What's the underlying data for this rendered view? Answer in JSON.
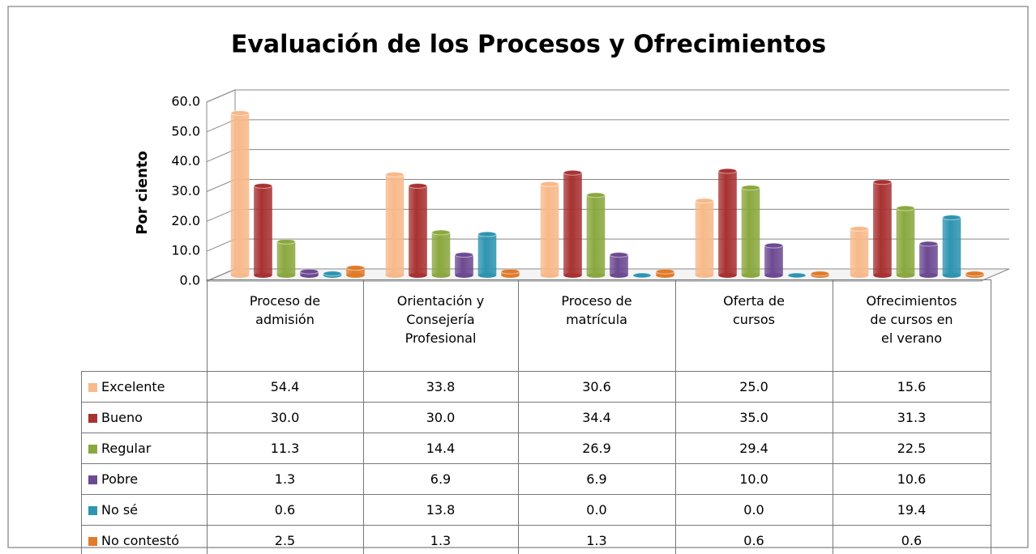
{
  "chart_data": {
    "type": "bar3d",
    "title": "Evaluación de los Procesos y Ofrecimientos",
    "y_label": "Por ciento",
    "categories": [
      "Proceso de\nadmisión",
      "Orientación y\nConsejería\nProfesional",
      "Proceso de\nmatrícula",
      "Oferta de\ncursos",
      "Ofrecimientos\nde cursos en\nel verano"
    ],
    "ylim": [
      0,
      60
    ],
    "yticks": [
      {
        "value": 0,
        "label": "0.0"
      },
      {
        "value": 10,
        "label": "10.0"
      },
      {
        "value": 20,
        "label": "20.0"
      },
      {
        "value": 30,
        "label": "30.0"
      },
      {
        "value": 40,
        "label": "40.0"
      },
      {
        "value": 50,
        "label": "50.0"
      },
      {
        "value": 60,
        "label": "60.0"
      }
    ],
    "grid": true,
    "series": [
      {
        "name": "Excelente",
        "color": "#f7b98a",
        "values": [
          54.4,
          33.8,
          30.6,
          25,
          15.6
        ],
        "value_labels": [
          "54.4",
          "33.8",
          "30.6",
          "25.0",
          "15.6"
        ]
      },
      {
        "name": "Bueno",
        "color": "#a83232",
        "values": [
          30,
          30,
          34.4,
          35,
          31.3
        ],
        "value_labels": [
          "30.0",
          "30.0",
          "34.4",
          "35.0",
          "31.3"
        ]
      },
      {
        "name": "Regular",
        "color": "#8aa83f",
        "values": [
          11.3,
          14.4,
          26.9,
          29.4,
          22.5
        ],
        "value_labels": [
          "11.3",
          "14.4",
          "26.9",
          "29.4",
          "22.5"
        ]
      },
      {
        "name": "Pobre",
        "color": "#6d4a91",
        "values": [
          1.3,
          6.9,
          6.9,
          10,
          10.6
        ],
        "value_labels": [
          "1.3",
          "6.9",
          "6.9",
          "10.0",
          "10.6"
        ]
      },
      {
        "name": "No sé",
        "color": "#2e94b0",
        "values": [
          0.6,
          13.8,
          0,
          0,
          19.4
        ],
        "value_labels": [
          "0.6",
          "13.8",
          "0.0",
          "0.0",
          "19.4"
        ]
      },
      {
        "name": "No contestó",
        "color": "#e07b2a",
        "values": [
          2.5,
          1.3,
          1.3,
          0.6,
          0.6
        ],
        "value_labels": [
          "2.5",
          "1.3",
          "1.3",
          "0.6",
          "0.6"
        ]
      }
    ]
  }
}
